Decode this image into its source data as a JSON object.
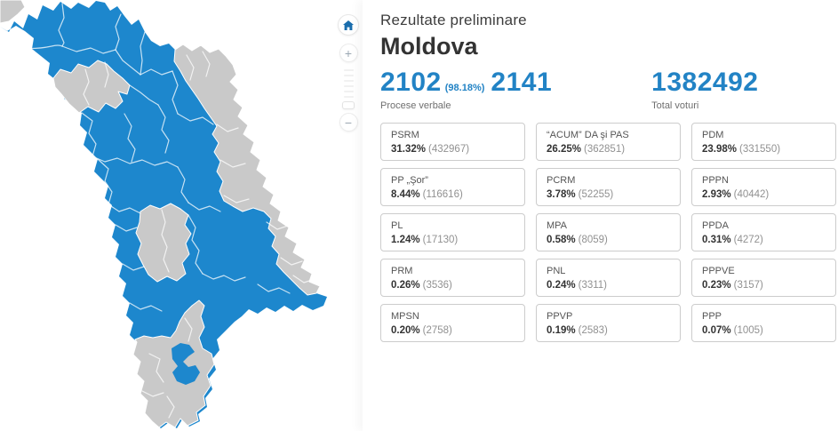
{
  "colors": {
    "map_region": "#1d87cd",
    "map_inactive": "#c9c9c9",
    "map_border": "#ffffff",
    "accent": "#2283c5",
    "home_icon": "#1a6dad"
  },
  "map_controls": {
    "zoom_in_label": "+",
    "zoom_out_label": "−"
  },
  "panel": {
    "subtitle": "Rezultate preliminare",
    "title": "Moldova",
    "stats": {
      "processed_value": "2102",
      "processed_percent": "(98.18%)",
      "processed_total": "2141",
      "processed_label": "Procese verbale",
      "total_votes": "1382492",
      "total_votes_label": "Total voturi"
    },
    "results": [
      {
        "name": "PSRM",
        "percent": "31.32%",
        "votes": "(432967)"
      },
      {
        "name": "“ACUM” DA şi PAS",
        "percent": "26.25%",
        "votes": "(362851)"
      },
      {
        "name": "PDM",
        "percent": "23.98%",
        "votes": "(331550)"
      },
      {
        "name": "PP „Şor”",
        "percent": "8.44%",
        "votes": "(116616)"
      },
      {
        "name": "PCRM",
        "percent": "3.78%",
        "votes": "(52255)"
      },
      {
        "name": "PPPN",
        "percent": "2.93%",
        "votes": "(40442)"
      },
      {
        "name": "PL",
        "percent": "1.24%",
        "votes": "(17130)"
      },
      {
        "name": "MPA",
        "percent": "0.58%",
        "votes": "(8059)"
      },
      {
        "name": "PPDA",
        "percent": "0.31%",
        "votes": "(4272)"
      },
      {
        "name": "PRM",
        "percent": "0.26%",
        "votes": "(3536)"
      },
      {
        "name": "PNL",
        "percent": "0.24%",
        "votes": "(3311)"
      },
      {
        "name": "PPPVE",
        "percent": "0.23%",
        "votes": "(3157)"
      },
      {
        "name": "MPSN",
        "percent": "0.20%",
        "votes": "(2758)"
      },
      {
        "name": "PPVP",
        "percent": "0.19%",
        "votes": "(2583)"
      },
      {
        "name": "PPP",
        "percent": "0.07%",
        "votes": "(1005)"
      }
    ]
  }
}
